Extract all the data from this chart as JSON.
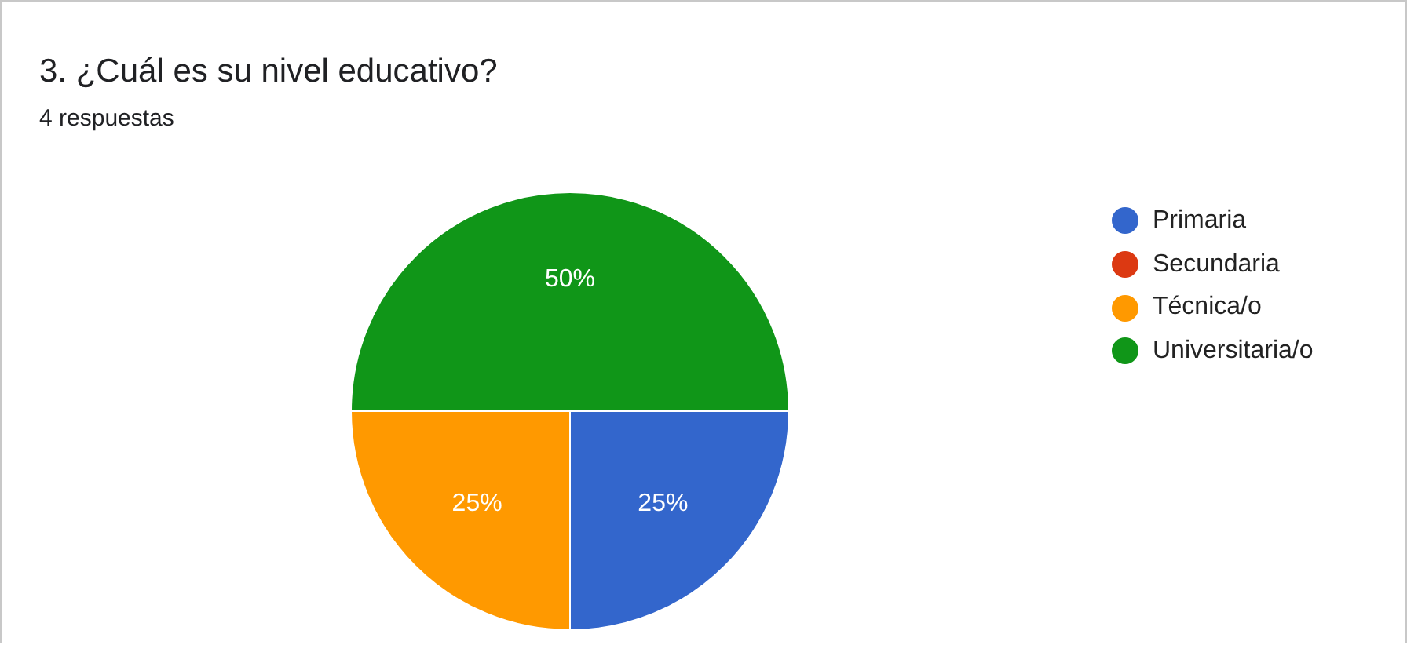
{
  "chart_data": {
    "type": "pie",
    "title": "3. ¿Cuál es su nivel educativo?",
    "subtitle": "4 respuestas",
    "categories": [
      "Primaria",
      "Secundaria",
      "Técnica/o",
      "Universitaria/o"
    ],
    "values": [
      25,
      0,
      25,
      50
    ],
    "colors": [
      "#3366cc",
      "#dc3912",
      "#ff9900",
      "#109618"
    ],
    "value_labels": [
      "25%",
      null,
      "25%",
      "50%"
    ],
    "legend": "right"
  }
}
